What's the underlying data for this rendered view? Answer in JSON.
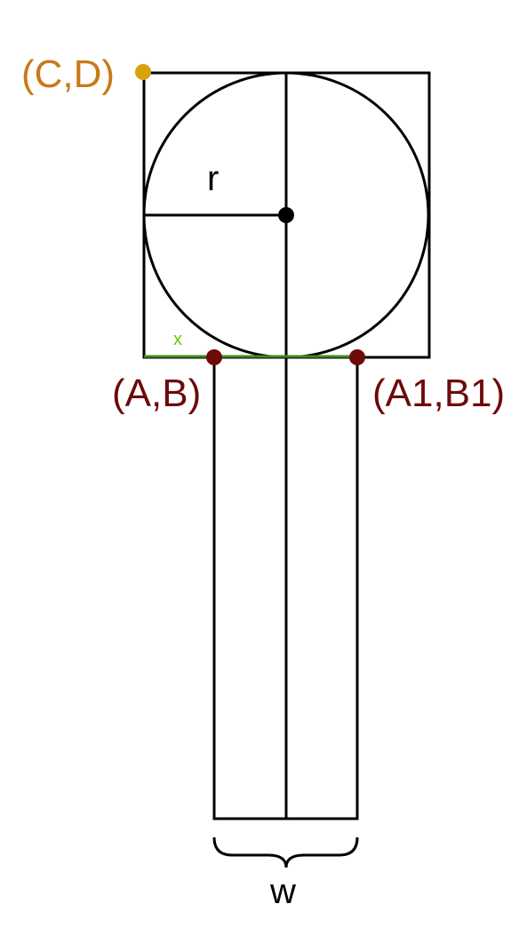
{
  "labels": {
    "corner_cd": "(C,D)",
    "point_ab": "(A,B)",
    "point_a1b1": "(A1,B1)",
    "radius": "r",
    "offset": "x",
    "width": "w"
  },
  "colors": {
    "stroke": "#000000",
    "corner_cd": "#C87A1A",
    "corner_cd_dot": "#DAA10F",
    "point_ab": "#6E0A0A",
    "offset_line": "#3E8A1E",
    "offset_label": "#66CC00",
    "center_dot": "#000000",
    "background": "#FFFFFF"
  }
}
